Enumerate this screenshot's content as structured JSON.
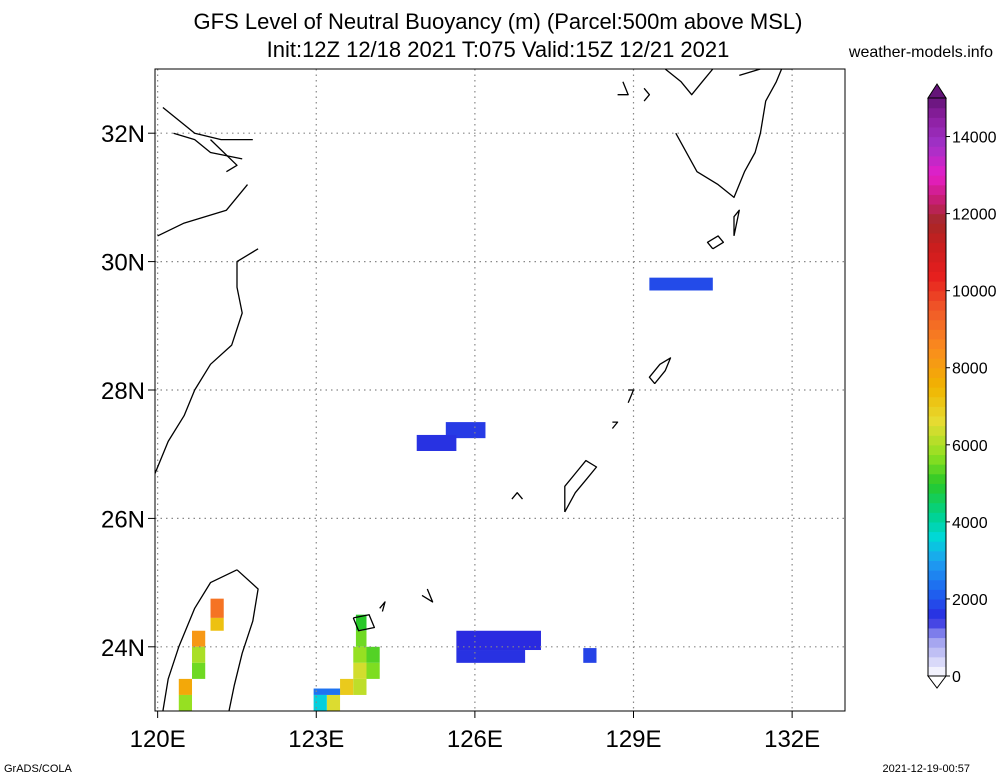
{
  "title": {
    "line1": "GFS Level of Neutral Buoyancy (m) (Parcel:500m above MSL)",
    "line2": "Init:12Z 12/18 2021 T:075 Valid:15Z 12/21 2021"
  },
  "site": "weather-models.info",
  "footer": {
    "left": "GrADS/COLA",
    "right": "2021-12-19-00:57"
  },
  "map": {
    "lon_range": [
      119.95,
      133.0
    ],
    "lat_range": [
      23.0,
      33.0
    ],
    "x_ticks": [
      {
        "lon": 120,
        "label": "120E"
      },
      {
        "lon": 123,
        "label": "123E"
      },
      {
        "lon": 126,
        "label": "126E"
      },
      {
        "lon": 129,
        "label": "129E"
      },
      {
        "lon": 132,
        "label": "132E"
      }
    ],
    "y_ticks": [
      {
        "lat": 24,
        "label": "24N"
      },
      {
        "lat": 26,
        "label": "26N"
      },
      {
        "lat": 28,
        "label": "28N"
      },
      {
        "lat": 30,
        "label": "30N"
      },
      {
        "lat": 32,
        "label": "32N"
      }
    ],
    "grid": true
  },
  "colorbar": {
    "unit": "m",
    "min": 0,
    "max": 15000,
    "labels": [
      "0",
      "2000",
      "4000",
      "6000",
      "8000",
      "10000",
      "12000",
      "14000"
    ],
    "stops": [
      {
        "v": 0,
        "c": "#ffffff"
      },
      {
        "v": 1000,
        "c": "#9999ee"
      },
      {
        "v": 1500,
        "c": "#2a2ae0"
      },
      {
        "v": 2200,
        "c": "#1e64f0"
      },
      {
        "v": 3000,
        "c": "#1ea0f0"
      },
      {
        "v": 3600,
        "c": "#00d8d8"
      },
      {
        "v": 4200,
        "c": "#00d28c"
      },
      {
        "v": 5000,
        "c": "#28c828"
      },
      {
        "v": 5700,
        "c": "#8ce020"
      },
      {
        "v": 6600,
        "c": "#e6dc32"
      },
      {
        "v": 7500,
        "c": "#f0b400"
      },
      {
        "v": 8500,
        "c": "#fa8c1e"
      },
      {
        "v": 9500,
        "c": "#f05a28"
      },
      {
        "v": 10400,
        "c": "#e61e1e"
      },
      {
        "v": 11200,
        "c": "#c81e1e"
      },
      {
        "v": 11800,
        "c": "#a52828"
      },
      {
        "v": 12400,
        "c": "#c81e78"
      },
      {
        "v": 13000,
        "c": "#e61ec8"
      },
      {
        "v": 13800,
        "c": "#a032c8"
      },
      {
        "v": 14500,
        "c": "#8c1ea0"
      },
      {
        "v": 15000,
        "c": "#641478"
      }
    ]
  },
  "lnb_cells": [
    {
      "lon0": 129.3,
      "lon1": 130.5,
      "lat0": 29.55,
      "lat1": 29.75,
      "value": 1900
    },
    {
      "lon0": 125.45,
      "lon1": 126.2,
      "lat0": 27.25,
      "lat1": 27.5,
      "value": 1700
    },
    {
      "lon0": 124.9,
      "lon1": 125.65,
      "lat0": 27.05,
      "lat1": 27.3,
      "value": 1600
    },
    {
      "lon0": 125.65,
      "lon1": 127.25,
      "lat0": 23.95,
      "lat1": 24.25,
      "value": 1500
    },
    {
      "lon0": 125.65,
      "lon1": 126.95,
      "lat0": 23.75,
      "lat1": 23.95,
      "value": 1600
    },
    {
      "lon0": 128.05,
      "lon1": 128.3,
      "lat0": 23.75,
      "lat1": 23.98,
      "value": 1800
    },
    {
      "lon0": 123.75,
      "lon1": 123.95,
      "lat0": 24.25,
      "lat1": 24.5,
      "value": 5000
    },
    {
      "lon0": 123.75,
      "lon1": 123.95,
      "lat0": 24.0,
      "lat1": 24.25,
      "value": 5500
    },
    {
      "lon0": 123.7,
      "lon1": 123.95,
      "lat0": 23.75,
      "lat1": 24.0,
      "value": 5800
    },
    {
      "lon0": 123.95,
      "lon1": 124.2,
      "lat0": 23.75,
      "lat1": 24.0,
      "value": 5300
    },
    {
      "lon0": 123.95,
      "lon1": 124.2,
      "lat0": 23.5,
      "lat1": 23.75,
      "value": 5600
    },
    {
      "lon0": 123.7,
      "lon1": 123.95,
      "lat0": 23.5,
      "lat1": 23.75,
      "value": 6400
    },
    {
      "lon0": 123.45,
      "lon1": 123.7,
      "lat0": 23.25,
      "lat1": 23.5,
      "value": 7000
    },
    {
      "lon0": 123.7,
      "lon1": 123.95,
      "lat0": 23.25,
      "lat1": 23.5,
      "value": 6200
    },
    {
      "lon0": 123.2,
      "lon1": 123.45,
      "lat0": 23.0,
      "lat1": 23.25,
      "value": 6500
    },
    {
      "lon0": 122.95,
      "lon1": 123.45,
      "lat0": 23.25,
      "lat1": 23.35,
      "value": 2400
    },
    {
      "lon0": 122.95,
      "lon1": 123.2,
      "lat0": 23.0,
      "lat1": 23.25,
      "value": 3500
    },
    {
      "lon0": 121.0,
      "lon1": 121.25,
      "lat0": 24.45,
      "lat1": 24.75,
      "value": 9000
    },
    {
      "lon0": 121.0,
      "lon1": 121.25,
      "lat0": 24.25,
      "lat1": 24.45,
      "value": 7200
    },
    {
      "lon0": 120.65,
      "lon1": 120.9,
      "lat0": 24.0,
      "lat1": 24.25,
      "value": 8200
    },
    {
      "lon0": 120.65,
      "lon1": 120.9,
      "lat0": 23.75,
      "lat1": 24.0,
      "value": 6000
    },
    {
      "lon0": 120.65,
      "lon1": 120.9,
      "lat0": 23.5,
      "lat1": 23.75,
      "value": 5500
    },
    {
      "lon0": 120.4,
      "lon1": 120.65,
      "lat0": 23.25,
      "lat1": 23.5,
      "value": 7800
    },
    {
      "lon0": 120.4,
      "lon1": 120.65,
      "lat0": 23.0,
      "lat1": 23.25,
      "value": 5800
    }
  ],
  "coastlines": [
    [
      [
        121.8,
        31.9
      ],
      [
        121.2,
        31.9
      ],
      [
        120.7,
        32.0
      ],
      [
        120.1,
        32.4
      ]
    ],
    [
      [
        121.6,
        31.6
      ],
      [
        121.0,
        31.7
      ],
      [
        120.7,
        31.9
      ],
      [
        120.3,
        32.0
      ]
    ],
    [
      [
        121.7,
        31.2
      ],
      [
        121.3,
        30.8
      ],
      [
        120.5,
        30.6
      ],
      [
        120.0,
        30.4
      ]
    ],
    [
      [
        121.9,
        30.2
      ],
      [
        121.5,
        30.0
      ],
      [
        121.5,
        29.6
      ],
      [
        121.6,
        29.2
      ],
      [
        121.4,
        28.7
      ],
      [
        121.0,
        28.4
      ],
      [
        120.7,
        28.0
      ],
      [
        120.5,
        27.6
      ],
      [
        120.2,
        27.2
      ],
      [
        119.95,
        26.7
      ]
    ],
    [
      [
        121.5,
        25.2
      ],
      [
        121.9,
        24.9
      ],
      [
        121.8,
        24.4
      ],
      [
        121.6,
        23.9
      ],
      [
        121.45,
        23.4
      ],
      [
        121.35,
        23.0
      ]
    ],
    [
      [
        121.5,
        25.2
      ],
      [
        121.0,
        25.0
      ],
      [
        120.7,
        24.6
      ],
      [
        120.4,
        24.0
      ],
      [
        120.2,
        23.5
      ],
      [
        120.1,
        23.0
      ]
    ],
    [
      [
        123.7,
        24.45
      ],
      [
        124.0,
        24.5
      ],
      [
        124.1,
        24.3
      ],
      [
        123.8,
        24.25
      ],
      [
        123.7,
        24.45
      ]
    ],
    [
      [
        124.2,
        24.6
      ],
      [
        124.3,
        24.7
      ],
      [
        124.25,
        24.55
      ]
    ],
    [
      [
        127.7,
        26.1
      ],
      [
        127.9,
        26.4
      ],
      [
        128.1,
        26.6
      ],
      [
        128.3,
        26.8
      ],
      [
        128.1,
        26.9
      ],
      [
        127.9,
        26.7
      ],
      [
        127.7,
        26.5
      ],
      [
        127.7,
        26.1
      ]
    ],
    [
      [
        129.4,
        28.1
      ],
      [
        129.6,
        28.3
      ],
      [
        129.7,
        28.5
      ],
      [
        129.5,
        28.4
      ],
      [
        129.3,
        28.2
      ],
      [
        129.4,
        28.1
      ]
    ],
    [
      [
        130.5,
        30.2
      ],
      [
        130.7,
        30.3
      ],
      [
        130.6,
        30.4
      ],
      [
        130.4,
        30.3
      ],
      [
        130.5,
        30.2
      ]
    ],
    [
      [
        130.9,
        30.4
      ],
      [
        131.0,
        30.8
      ],
      [
        130.9,
        30.7
      ],
      [
        130.9,
        30.4
      ]
    ],
    [
      [
        129.8,
        32.0
      ],
      [
        130.2,
        31.4
      ],
      [
        130.6,
        31.2
      ],
      [
        130.9,
        31.0
      ],
      [
        131.1,
        31.4
      ],
      [
        131.3,
        31.7
      ],
      [
        131.4,
        32.0
      ],
      [
        131.5,
        32.5
      ],
      [
        131.7,
        32.8
      ],
      [
        131.8,
        33.0
      ]
    ],
    [
      [
        129.6,
        33.0
      ],
      [
        129.9,
        32.8
      ],
      [
        130.1,
        32.6
      ],
      [
        130.3,
        32.8
      ],
      [
        130.5,
        33.0
      ]
    ],
    [
      [
        129.2,
        32.7
      ],
      [
        129.3,
        32.6
      ],
      [
        129.2,
        32.5
      ]
    ],
    [
      [
        128.8,
        32.8
      ],
      [
        128.9,
        32.6
      ],
      [
        128.7,
        32.6
      ]
    ],
    [
      [
        125.0,
        24.8
      ],
      [
        125.2,
        24.7
      ],
      [
        125.1,
        24.9
      ]
    ],
    [
      [
        126.7,
        26.3
      ],
      [
        126.8,
        26.4
      ],
      [
        126.9,
        26.3
      ]
    ],
    [
      [
        128.9,
        27.8
      ],
      [
        129.0,
        28.0
      ],
      [
        128.9,
        28.0
      ]
    ],
    [
      [
        128.6,
        27.4
      ],
      [
        128.7,
        27.5
      ],
      [
        128.6,
        27.5
      ]
    ],
    [
      [
        131.0,
        32.9
      ],
      [
        131.4,
        33.0
      ],
      [
        132.0,
        33.0
      ],
      [
        132.5,
        33.1
      ]
    ],
    [
      [
        121.3,
        31.4
      ],
      [
        121.5,
        31.5
      ],
      [
        121.0,
        31.9
      ]
    ]
  ]
}
